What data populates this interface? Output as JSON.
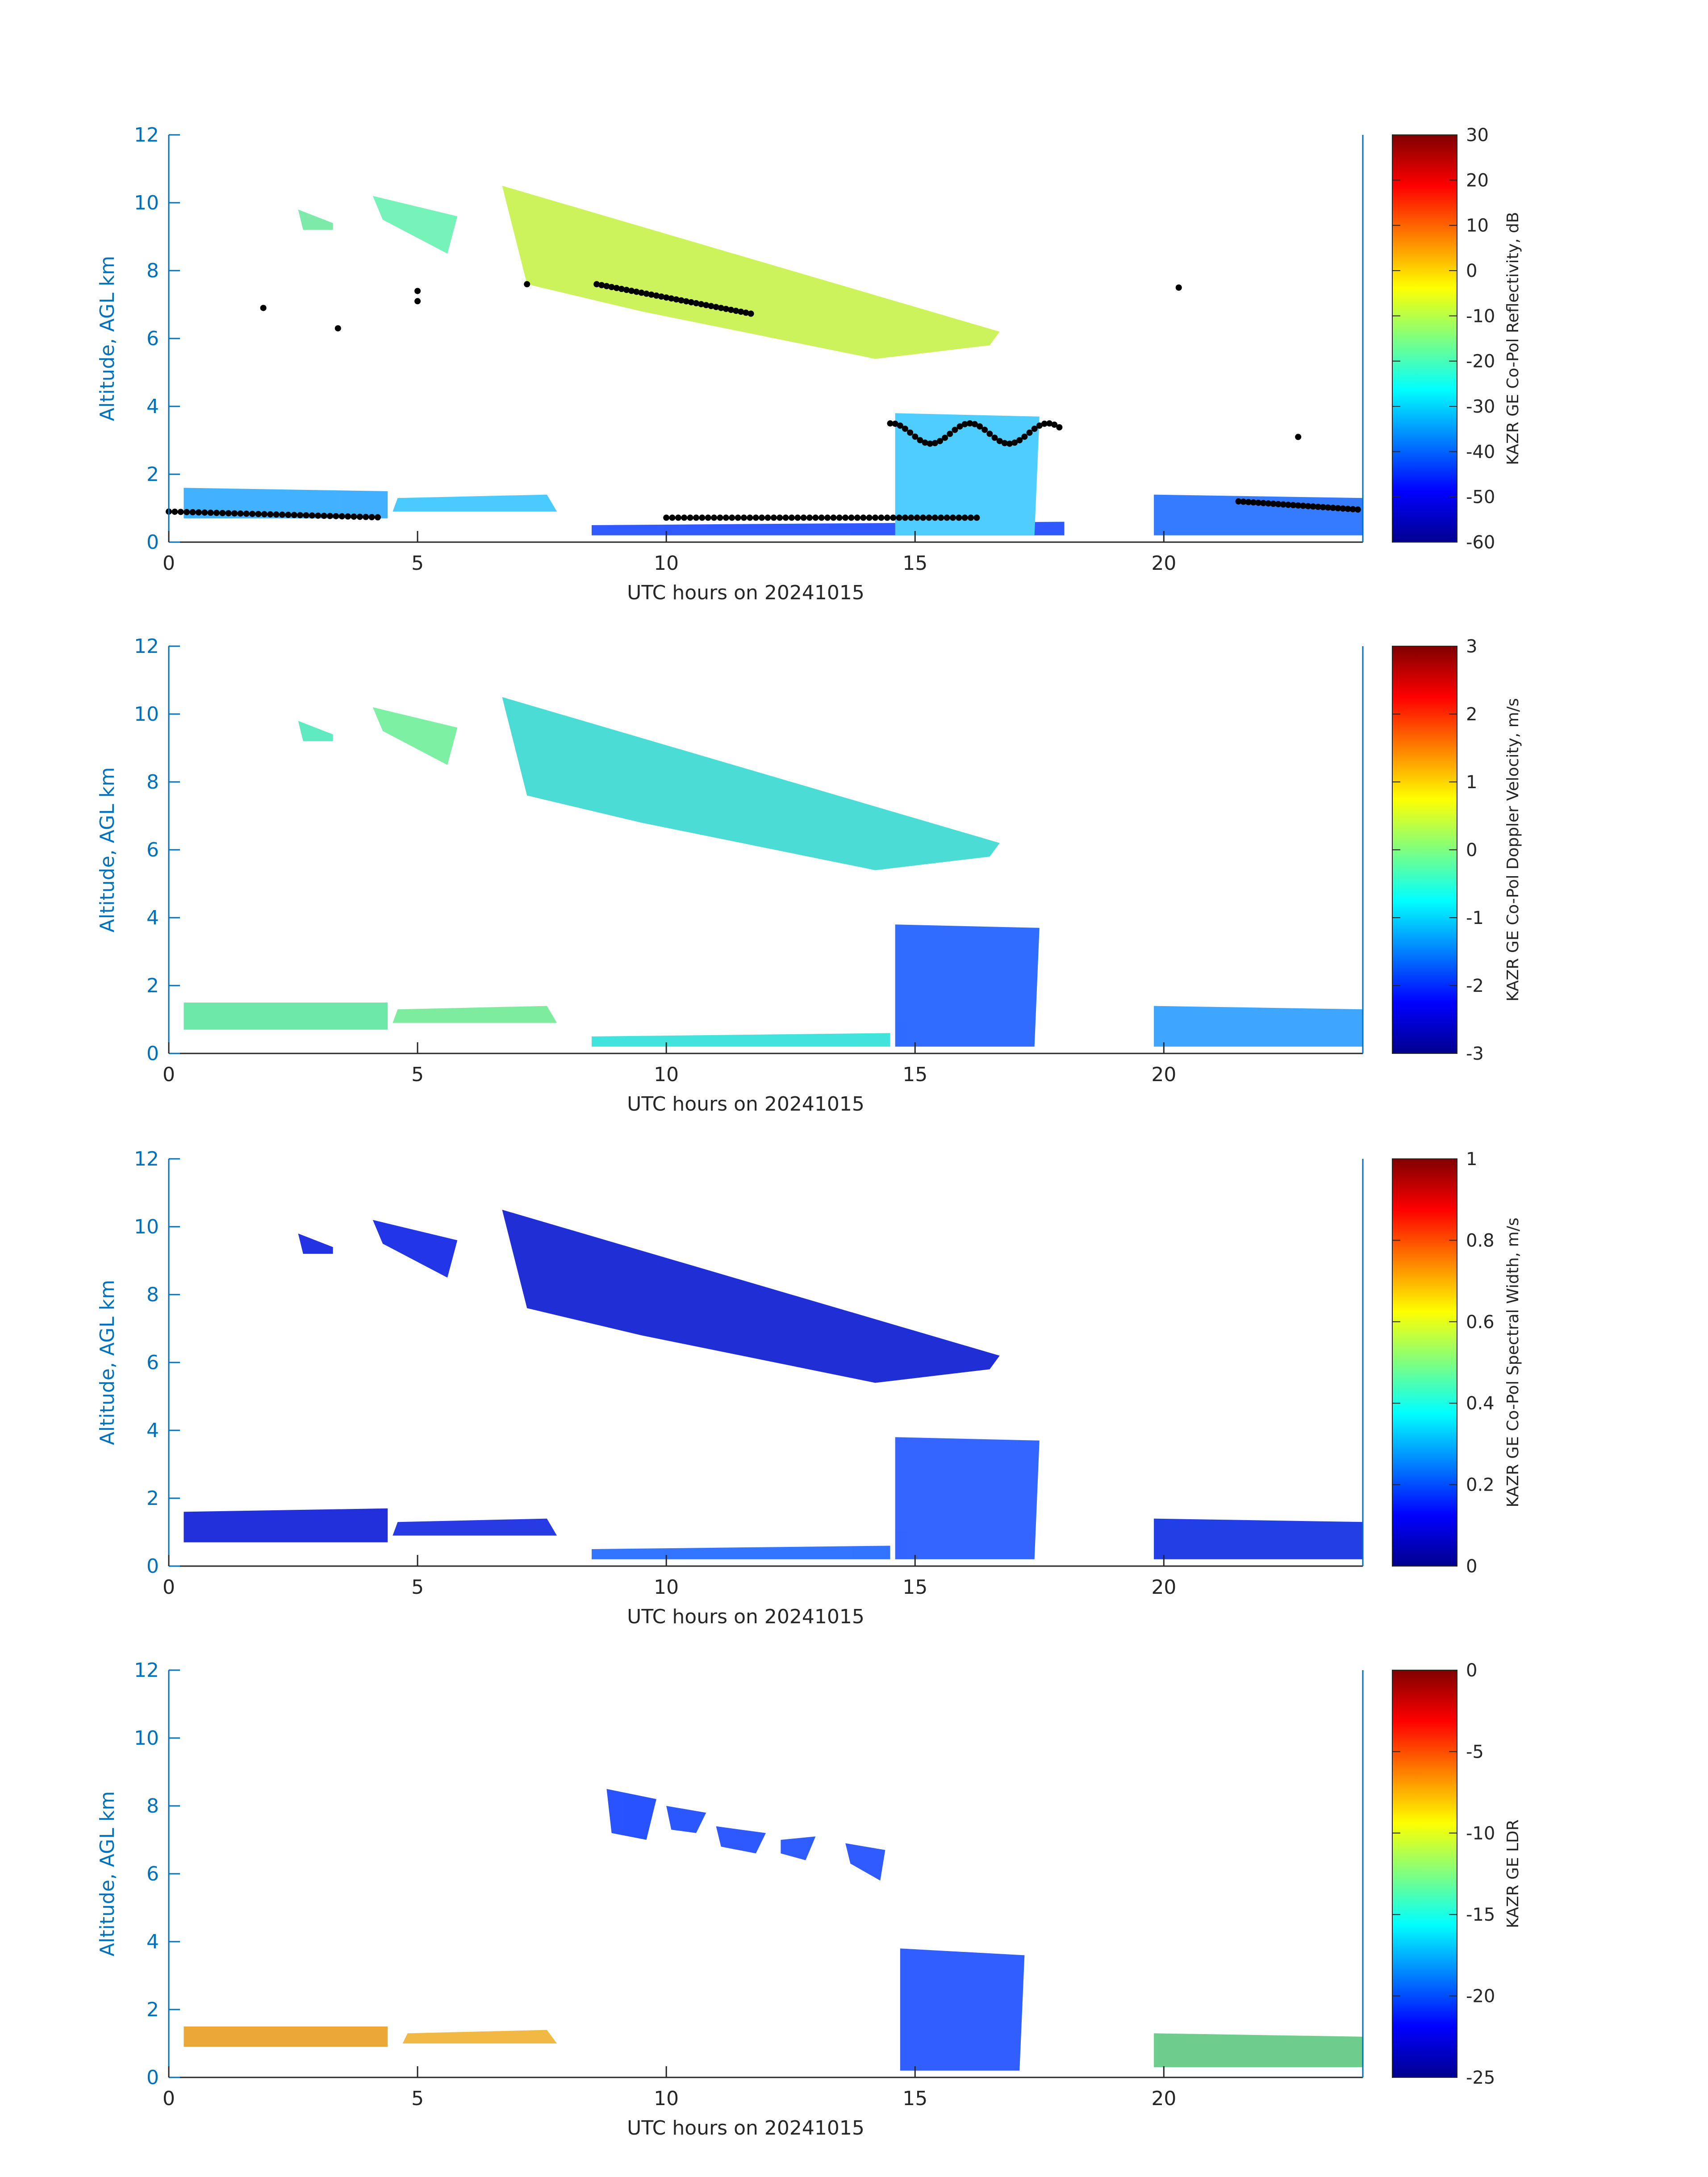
{
  "figure": {
    "axis_color": "#0072BD",
    "text_color": "#262626"
  },
  "chart_data": [
    {
      "type": "heatmap",
      "panel": "reflectivity",
      "xlabel": "UTC hours on 20241015",
      "ylabel": "Altitude, AGL km",
      "xlim": [
        0,
        24
      ],
      "ylim": [
        0,
        12
      ],
      "x_ticks": [
        "0",
        "5",
        "10",
        "15",
        "20"
      ],
      "y_ticks": [
        "0",
        "2",
        "4",
        "6",
        "8",
        "10",
        "12"
      ],
      "colorbar": {
        "label": "KAZR GE Co-Pol Reflectivity, dB",
        "range": [
          -60,
          30
        ],
        "ticks": [
          "-60",
          "-50",
          "-40",
          "-30",
          "-20",
          "-10",
          "0",
          "10",
          "20",
          "30"
        ],
        "colormap": "jet"
      },
      "overlay": "black dots: cloud-base / detection markers"
    },
    {
      "type": "heatmap",
      "panel": "velocity",
      "xlabel": "UTC hours on 20241015",
      "ylabel": "Altitude, AGL km",
      "xlim": [
        0,
        24
      ],
      "ylim": [
        0,
        12
      ],
      "x_ticks": [
        "0",
        "5",
        "10",
        "15",
        "20"
      ],
      "y_ticks": [
        "0",
        "2",
        "4",
        "6",
        "8",
        "10",
        "12"
      ],
      "colorbar": {
        "label": "KAZR GE Co-Pol Doppler Velocity, m/s",
        "range": [
          -3,
          3
        ],
        "ticks": [
          "-3",
          "-2",
          "-1",
          "0",
          "1",
          "2",
          "3"
        ],
        "colormap": "jet"
      }
    },
    {
      "type": "heatmap",
      "panel": "width",
      "xlabel": "UTC hours on 20241015",
      "ylabel": "Altitude, AGL km",
      "xlim": [
        0,
        24
      ],
      "ylim": [
        0,
        12
      ],
      "x_ticks": [
        "0",
        "5",
        "10",
        "15",
        "20"
      ],
      "y_ticks": [
        "0",
        "2",
        "4",
        "6",
        "8",
        "10",
        "12"
      ],
      "colorbar": {
        "label": "KAZR GE Co-Pol Spectral Width, m/s",
        "range": [
          0,
          1
        ],
        "ticks": [
          "0",
          "0.2",
          "0.4",
          "0.6",
          "0.8",
          "1"
        ],
        "colormap": "jet"
      }
    },
    {
      "type": "heatmap",
      "panel": "ldr",
      "xlabel": "UTC hours on 20241015",
      "ylabel": "Altitude, AGL km",
      "xlim": [
        0,
        24
      ],
      "ylim": [
        0,
        12
      ],
      "x_ticks": [
        "0",
        "5",
        "10",
        "15",
        "20"
      ],
      "y_ticks": [
        "0",
        "2",
        "4",
        "6",
        "8",
        "10",
        "12"
      ],
      "colorbar": {
        "label": "KAZR GE LDR",
        "range": [
          -25,
          0
        ],
        "ticks": [
          "-25",
          "-20",
          "-15",
          "-10",
          "-5",
          "0"
        ],
        "colormap": "jet"
      }
    }
  ]
}
